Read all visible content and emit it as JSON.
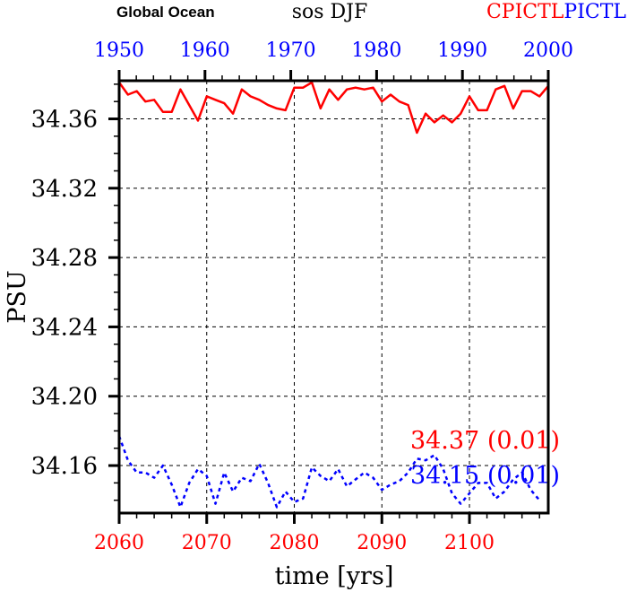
{
  "header": {
    "region": "Global Ocean",
    "title": "sos DJF",
    "legend_red": "CPICTL",
    "legend_blue": "PICTL"
  },
  "colors": {
    "red": "#ff0000",
    "blue": "#0000ff",
    "axis": "#000000"
  },
  "chart_data": {
    "type": "line",
    "title": "sos DJF",
    "xlabel": "time [yrs]",
    "ylabel": "PSU",
    "ylim": [
      34.1326,
      34.382
    ],
    "yticks": [
      "34.36",
      "34.32",
      "34.28",
      "34.24",
      "34.20",
      "34.16"
    ],
    "ytick_values": [
      34.36,
      34.32,
      34.28,
      34.24,
      34.2,
      34.16
    ],
    "x_bottom": {
      "range": [
        2060,
        2109
      ],
      "ticks": [
        "2060",
        "2070",
        "2080",
        "2090",
        "2100"
      ],
      "tick_values": [
        2060,
        2070,
        2080,
        2090,
        2100
      ],
      "color": "red"
    },
    "x_top": {
      "range": [
        1950,
        2000
      ],
      "ticks": [
        "1950",
        "1960",
        "1970",
        "1980",
        "1990",
        "2000"
      ],
      "tick_values": [
        1950,
        1960,
        1970,
        1980,
        1990,
        2000
      ],
      "color": "blue"
    },
    "grid": true,
    "series": [
      {
        "name": "CPICTL",
        "color": "red",
        "style": "solid",
        "start_year": 2060,
        "values": [
          34.381,
          34.374,
          34.376,
          34.37,
          34.371,
          34.364,
          34.364,
          34.377,
          34.368,
          34.359,
          34.373,
          34.371,
          34.369,
          34.363,
          34.377,
          34.373,
          34.371,
          34.368,
          34.366,
          34.365,
          34.378,
          34.378,
          34.381,
          34.366,
          34.377,
          34.371,
          34.377,
          34.378,
          34.377,
          34.378,
          34.37,
          34.374,
          34.37,
          34.368,
          34.352,
          34.363,
          34.358,
          34.362,
          34.358,
          34.363,
          34.373,
          34.365,
          34.365,
          34.377,
          34.379,
          34.366,
          34.376,
          34.376,
          34.373,
          34.379
        ],
        "annotation": "34.37 (0.01)"
      },
      {
        "name": "PICTL",
        "color": "blue",
        "style": "dashed",
        "start_year": 2060,
        "values": [
          34.177,
          34.163,
          34.156,
          34.156,
          34.153,
          34.16,
          34.149,
          34.136,
          34.15,
          34.158,
          34.154,
          34.138,
          34.156,
          34.145,
          34.153,
          34.151,
          34.161,
          34.15,
          34.136,
          34.145,
          34.139,
          34.141,
          34.159,
          34.154,
          34.151,
          34.158,
          34.148,
          34.152,
          34.156,
          34.153,
          34.146,
          34.149,
          34.151,
          34.156,
          34.164,
          34.163,
          34.166,
          34.158,
          34.144,
          34.138,
          34.144,
          34.15,
          34.15,
          34.141,
          34.145,
          34.152,
          34.156,
          34.146,
          34.14
        ],
        "annotation": "34.15 (0.01)"
      }
    ]
  }
}
